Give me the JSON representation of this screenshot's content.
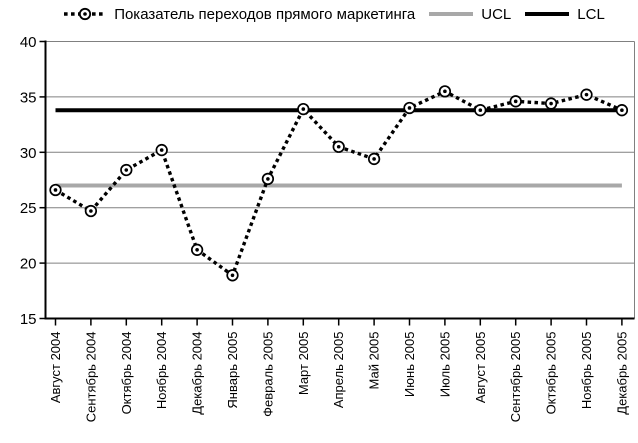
{
  "legend": {
    "series_label": "Показатель переходов прямого маркетинга",
    "ucl_label": "UCL",
    "lcl_label": "LCL"
  },
  "chart_data": {
    "type": "line",
    "title": "",
    "categories": [
      "Август 2004",
      "Сентябрь 2004",
      "Октябрь 2004",
      "Ноябрь 2004",
      "Декабрь 2004",
      "Январь 2005",
      "Февраль 2005",
      "Март 2005",
      "Апрель 2005",
      "Май 2005",
      "Июнь 2005",
      "Июль 2005",
      "Август 2005",
      "Сентябрь 2005",
      "Октябрь 2005",
      "Ноябрь 2005",
      "Декабрь 2005"
    ],
    "series": [
      {
        "name": "Показатель переходов прямого маркетинга",
        "line": "dotted",
        "marker": "circle-dot",
        "color": "#000000",
        "values": [
          26.6,
          24.7,
          28.4,
          30.2,
          21.2,
          18.9,
          27.6,
          33.9,
          30.5,
          29.4,
          34.0,
          35.5,
          33.8,
          34.6,
          34.4,
          35.2,
          33.8
        ]
      },
      {
        "name": "UCL",
        "line": "solid",
        "color": "#a8a8a8",
        "constant": 27.0
      },
      {
        "name": "LCL",
        "line": "solid",
        "color": "#000000",
        "constant": 33.8
      }
    ],
    "xlabel": "",
    "ylabel": "",
    "ylim": [
      15,
      40
    ],
    "yticks": [
      40,
      35,
      30,
      25,
      20,
      15
    ],
    "grid": "horizontal",
    "legend_position": "top",
    "colors": {
      "background": "#ffffff",
      "axis": "#000000",
      "gridline": "#808080",
      "text": "#000000"
    }
  }
}
